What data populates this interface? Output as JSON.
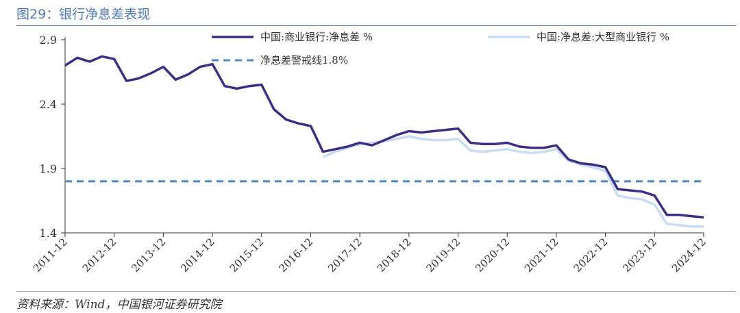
{
  "header": {
    "title": "图29：银行净息差表现"
  },
  "footer": {
    "source": "资料来源：Wind，中国银河证券研究院"
  },
  "colors": {
    "series1": "#3b2e84",
    "series2": "#c6dcf3",
    "threshold": "#4f86c6",
    "axis": "#333333"
  },
  "chart_data": {
    "type": "line",
    "title": "",
    "xlabel": "",
    "ylabel": "",
    "ylim": [
      1.4,
      2.9
    ],
    "y_ticks": [
      "1.4",
      "1.9",
      "2.4",
      "2.9"
    ],
    "x_ticks": [
      "2011-12",
      "2012-12",
      "2013-12",
      "2014-12",
      "2015-12",
      "2016-12",
      "2017-12",
      "2018-12",
      "2019-12",
      "2020-12",
      "2021-12",
      "2022-12",
      "2023-12",
      "2024-12"
    ],
    "grid": false,
    "legend_position": "top",
    "series": [
      {
        "name": "中国:商业银行:净息差 %",
        "x": [
          "2011-12",
          "2012-03",
          "2012-06",
          "2012-09",
          "2012-12",
          "2013-03",
          "2013-06",
          "2013-09",
          "2013-12",
          "2014-03",
          "2014-06",
          "2014-09",
          "2014-12",
          "2015-03",
          "2015-06",
          "2015-09",
          "2015-12",
          "2016-03",
          "2016-06",
          "2016-09",
          "2016-12",
          "2017-03",
          "2017-06",
          "2017-09",
          "2017-12",
          "2018-03",
          "2018-06",
          "2018-09",
          "2018-12",
          "2019-03",
          "2019-06",
          "2019-09",
          "2019-12",
          "2020-03",
          "2020-06",
          "2020-09",
          "2020-12",
          "2021-03",
          "2021-06",
          "2021-09",
          "2021-12",
          "2022-03",
          "2022-06",
          "2022-09",
          "2022-12",
          "2023-03",
          "2023-06",
          "2023-09",
          "2023-12",
          "2024-03",
          "2024-06",
          "2024-09",
          "2024-12"
        ],
        "values": [
          2.7,
          2.76,
          2.73,
          2.77,
          2.75,
          2.58,
          2.6,
          2.64,
          2.69,
          2.59,
          2.63,
          2.69,
          2.71,
          2.54,
          2.52,
          2.54,
          2.55,
          2.36,
          2.28,
          2.25,
          2.23,
          2.03,
          2.05,
          2.07,
          2.1,
          2.08,
          2.12,
          2.16,
          2.19,
          2.18,
          2.19,
          2.2,
          2.21,
          2.1,
          2.09,
          2.09,
          2.1,
          2.07,
          2.06,
          2.06,
          2.08,
          1.97,
          1.94,
          1.93,
          1.91,
          1.74,
          1.73,
          1.72,
          1.69,
          1.54,
          1.54,
          1.53,
          1.52
        ]
      },
      {
        "name": "中国:净息差:大型商业银行 %",
        "x": [
          "2017-03",
          "2017-06",
          "2017-09",
          "2017-12",
          "2018-03",
          "2018-06",
          "2018-09",
          "2018-12",
          "2019-03",
          "2019-06",
          "2019-09",
          "2019-12",
          "2020-03",
          "2020-06",
          "2020-09",
          "2020-12",
          "2021-03",
          "2021-06",
          "2021-09",
          "2021-12",
          "2022-03",
          "2022-06",
          "2022-09",
          "2022-12",
          "2023-03",
          "2023-06",
          "2023-09",
          "2023-12",
          "2024-03",
          "2024-06",
          "2024-09",
          "2024-12"
        ],
        "values": [
          1.99,
          2.03,
          2.06,
          2.09,
          2.1,
          2.11,
          2.13,
          2.15,
          2.13,
          2.12,
          2.12,
          2.13,
          2.04,
          2.03,
          2.04,
          2.05,
          2.03,
          2.02,
          2.03,
          2.05,
          1.96,
          1.93,
          1.91,
          1.88,
          1.69,
          1.67,
          1.66,
          1.62,
          1.47,
          1.46,
          1.45,
          1.45
        ]
      },
      {
        "name": "净息差警戒线1.8%",
        "x": [
          "2011-12",
          "2024-12"
        ],
        "values": [
          1.8,
          1.8
        ]
      }
    ]
  }
}
